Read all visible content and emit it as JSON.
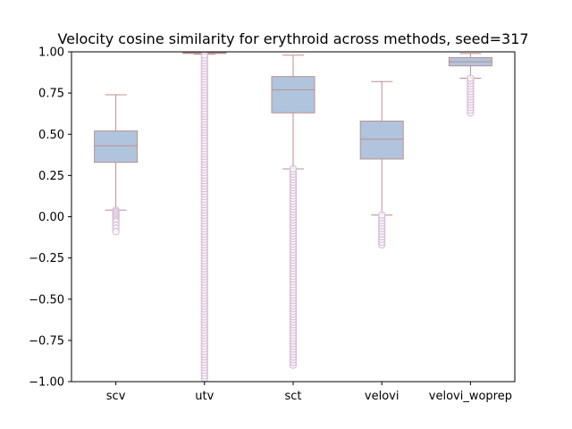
{
  "chart_data": {
    "type": "box",
    "title": "Velocity cosine similarity for erythroid across methods, seed=317",
    "xlabel": "",
    "ylabel": "",
    "ylim": [
      -1.0,
      1.0
    ],
    "yticks": [
      "1.00",
      "0.75",
      "0.50",
      "0.25",
      "0.00",
      "−0.25",
      "−0.50",
      "−0.75",
      "−1.00"
    ],
    "yticks_values": [
      1.0,
      0.75,
      0.5,
      0.25,
      0.0,
      -0.25,
      -0.5,
      -0.75,
      -1.0
    ],
    "categories": [
      "scv",
      "utv",
      "sct",
      "velovi",
      "velovi_woprep"
    ],
    "grid": false,
    "colors": {
      "box_fill": "#b0c4de",
      "box_edge": "#bc8f8f",
      "flier_edge": "#d8bfd8"
    },
    "boxes": [
      {
        "name": "scv",
        "q1": 0.33,
        "median": 0.43,
        "q3": 0.52,
        "whisker_low": 0.04,
        "whisker_high": 0.74,
        "outliers": [
          0.04,
          0.03,
          0.02,
          0.01,
          0.0,
          -0.01,
          -0.02,
          -0.03,
          -0.05,
          -0.07,
          -0.09
        ]
      },
      {
        "name": "utv",
        "q1": 0.99,
        "median": 0.995,
        "q3": 1.0,
        "whisker_low": 0.985,
        "whisker_high": 1.0,
        "outliers_range": [
          -0.98,
          0.98
        ]
      },
      {
        "name": "sct",
        "q1": 0.63,
        "median": 0.77,
        "q3": 0.85,
        "whisker_low": 0.29,
        "whisker_high": 0.98,
        "outliers_range": [
          -0.9,
          0.29
        ]
      },
      {
        "name": "velovi",
        "q1": 0.35,
        "median": 0.47,
        "q3": 0.58,
        "whisker_low": 0.01,
        "whisker_high": 0.82,
        "outliers_range": [
          -0.17,
          0.01
        ]
      },
      {
        "name": "velovi_woprep",
        "q1": 0.915,
        "median": 0.94,
        "q3": 0.965,
        "whisker_low": 0.84,
        "whisker_high": 0.99,
        "outliers_range": [
          0.63,
          0.84
        ]
      }
    ]
  }
}
